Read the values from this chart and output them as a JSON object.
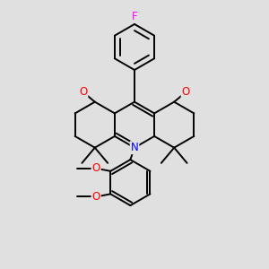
{
  "background_color": "#e0e0e0",
  "bond_color": "#000000",
  "bond_width": 1.4,
  "atom_colors": {
    "F": "#ff00ff",
    "O": "#ff0000",
    "N": "#0000ff",
    "C": "#000000"
  },
  "font_size": 8.5,
  "fig_size": [
    3.0,
    3.0
  ],
  "dpi": 100
}
